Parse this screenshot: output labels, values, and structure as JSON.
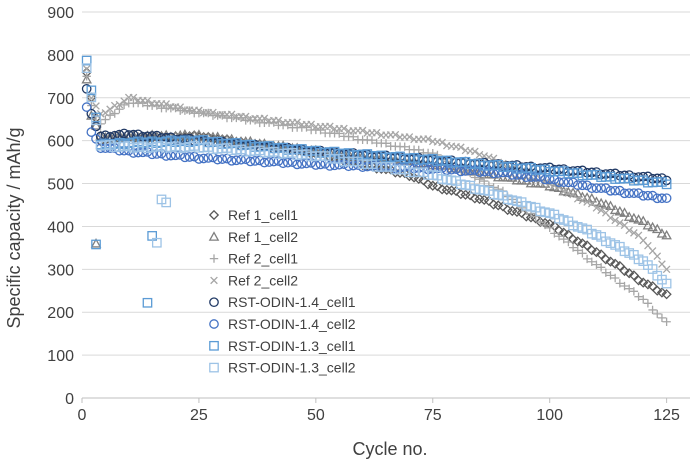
{
  "chart_data": {
    "type": "scatter",
    "xlabel": "Cycle no.",
    "ylabel": "Specific capacity / mAh/g",
    "xlim": [
      0,
      130
    ],
    "ylim": [
      0,
      900
    ],
    "xticks": [
      "0",
      "25",
      "50",
      "75",
      "100",
      "125"
    ],
    "yticks": [
      "0",
      "100",
      "200",
      "300",
      "400",
      "500",
      "600",
      "700",
      "800",
      "900"
    ],
    "grid": "horizontal",
    "legend_position": "center-left",
    "series": [
      {
        "name": "Ref 1_cell1",
        "marker": "diamond",
        "color": "#595959",
        "anchors": [
          [
            1,
            760
          ],
          [
            2,
            700
          ],
          [
            4,
            600
          ],
          [
            10,
            605
          ],
          [
            25,
            610
          ],
          [
            50,
            570
          ],
          [
            70,
            520
          ],
          [
            75,
            495
          ],
          [
            85,
            465
          ],
          [
            100,
            405
          ],
          [
            110,
            340
          ],
          [
            120,
            270
          ],
          [
            125,
            240
          ]
        ]
      },
      {
        "name": "Ref 1_cell2",
        "marker": "triangle",
        "color": "#7f7f7f",
        "anchors": [
          [
            1,
            740
          ],
          [
            2,
            660
          ],
          [
            4,
            610
          ],
          [
            10,
            610
          ],
          [
            25,
            612
          ],
          [
            50,
            575
          ],
          [
            75,
            545
          ],
          [
            90,
            515
          ],
          [
            100,
            495
          ],
          [
            110,
            460
          ],
          [
            120,
            410
          ],
          [
            125,
            380
          ]
        ]
      },
      {
        "name": "Ref 2_cell1",
        "marker": "plus",
        "color": "#a6a6a6",
        "anchors": [
          [
            1,
            750
          ],
          [
            2,
            680
          ],
          [
            4,
            640
          ],
          [
            10,
            690
          ],
          [
            25,
            665
          ],
          [
            50,
            625
          ],
          [
            75,
            570
          ],
          [
            90,
            480
          ],
          [
            100,
            395
          ],
          [
            110,
            310
          ],
          [
            120,
            230
          ],
          [
            125,
            175
          ]
        ]
      },
      {
        "name": "Ref 2_cell2",
        "marker": "cross",
        "color": "#a6a6a6",
        "anchors": [
          [
            1,
            770
          ],
          [
            2,
            700
          ],
          [
            4,
            660
          ],
          [
            10,
            700
          ],
          [
            25,
            668
          ],
          [
            50,
            635
          ],
          [
            75,
            600
          ],
          [
            85,
            570
          ],
          [
            100,
            500
          ],
          [
            110,
            445
          ],
          [
            120,
            370
          ],
          [
            125,
            300
          ]
        ]
      },
      {
        "name": "RST-ODIN-1.4_cell1",
        "marker": "circle",
        "color": "#1f3864",
        "anchors": [
          [
            1,
            720
          ],
          [
            2,
            660
          ],
          [
            4,
            610
          ],
          [
            10,
            615
          ],
          [
            25,
            600
          ],
          [
            50,
            575
          ],
          [
            75,
            555
          ],
          [
            100,
            535
          ],
          [
            125,
            510
          ]
        ]
      },
      {
        "name": "RST-ODIN-1.4_cell2",
        "marker": "circle",
        "color": "#4472c4",
        "anchors": [
          [
            1,
            680
          ],
          [
            2,
            620
          ],
          [
            4,
            585
          ],
          [
            10,
            575
          ],
          [
            25,
            560
          ],
          [
            50,
            545
          ],
          [
            75,
            535
          ],
          [
            90,
            525
          ],
          [
            100,
            510
          ],
          [
            110,
            490
          ],
          [
            125,
            465
          ]
        ]
      },
      {
        "name": "RST-ODIN-1.3_cell1",
        "marker": "square",
        "color": "#5b9bd5",
        "anchors": [
          [
            1,
            785
          ],
          [
            2,
            720
          ],
          [
            4,
            590
          ],
          [
            10,
            595
          ],
          [
            25,
            600
          ],
          [
            50,
            575
          ],
          [
            75,
            555
          ],
          [
            100,
            530
          ],
          [
            125,
            500
          ]
        ]
      },
      {
        "name": "RST-ODIN-1.3_cell2",
        "marker": "square",
        "color": "#9dc3e6",
        "anchors": [
          [
            1,
            770
          ],
          [
            2,
            700
          ],
          [
            4,
            590
          ],
          [
            10,
            585
          ],
          [
            25,
            585
          ],
          [
            50,
            565
          ],
          [
            75,
            520
          ],
          [
            90,
            470
          ],
          [
            100,
            430
          ],
          [
            110,
            380
          ],
          [
            120,
            320
          ],
          [
            125,
            265
          ]
        ]
      }
    ],
    "outliers": [
      {
        "series": "Ref 1_cell2",
        "x": 3,
        "y": 360
      },
      {
        "series": "RST-ODIN-1.3_cell1",
        "x": 3,
        "y": 358
      },
      {
        "series": "RST-ODIN-1.3_cell1",
        "x": 14,
        "y": 222
      },
      {
        "series": "RST-ODIN-1.3_cell1",
        "x": 15,
        "y": 378
      },
      {
        "series": "RST-ODIN-1.3_cell2",
        "x": 16,
        "y": 362
      },
      {
        "series": "RST-ODIN-1.3_cell2",
        "x": 17,
        "y": 463
      },
      {
        "series": "RST-ODIN-1.3_cell2",
        "x": 18,
        "y": 456
      }
    ],
    "point_count": 125
  }
}
